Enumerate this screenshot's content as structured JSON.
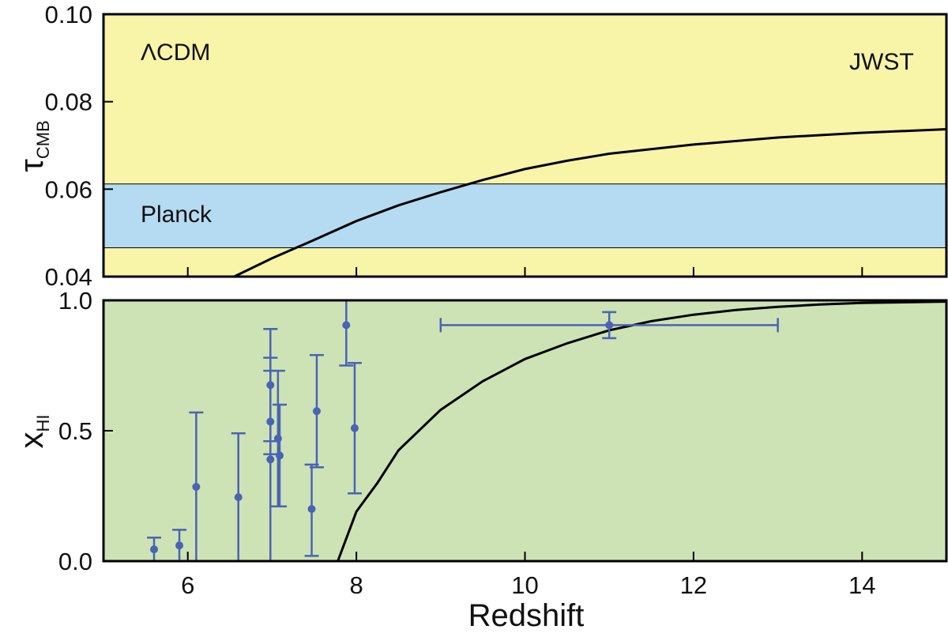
{
  "chart_data": [
    {
      "type": "line",
      "panel": "top",
      "ylabel_main": "τ",
      "ylabel_sub": "CMB",
      "xlim": [
        5,
        15
      ],
      "ylim": [
        0.04,
        0.1
      ],
      "yticks": [
        0.04,
        0.06,
        0.08,
        0.1
      ],
      "ytick_labels": [
        "0.04",
        "0.06",
        "0.08",
        "0.10"
      ],
      "background_color": "#f8f4a8",
      "band": {
        "label": "Planck",
        "range": [
          0.0466,
          0.0612
        ],
        "color": "#b5dbf2"
      },
      "annotations": [
        "ΛCDM",
        "JWST"
      ],
      "series": [
        {
          "x": [
            6.55,
            7.0,
            7.5,
            8.0,
            8.5,
            9.0,
            9.5,
            10.0,
            10.5,
            11.0,
            12.0,
            13.0,
            14.0,
            15.0
          ],
          "y": [
            0.04,
            0.0442,
            0.0484,
            0.0527,
            0.0563,
            0.0593,
            0.0621,
            0.0646,
            0.0665,
            0.0681,
            0.0702,
            0.0718,
            0.0729,
            0.0737
          ],
          "color": "#000000"
        }
      ]
    },
    {
      "type": "scatter",
      "panel": "bottom",
      "ylabel_main": "x",
      "ylabel_sub": "HI",
      "xlabel": "Redshift",
      "xlim": [
        5,
        15
      ],
      "ylim": [
        0,
        1
      ],
      "xticks": [
        6,
        8,
        10,
        12,
        14
      ],
      "xtick_labels": [
        "6",
        "8",
        "10",
        "12",
        "14"
      ],
      "yticks": [
        0.0,
        0.5,
        1.0
      ],
      "ytick_labels": [
        "0.0",
        "0.5",
        "1.0"
      ],
      "background_color": "#cde3b5",
      "point_color": "#4a63b5",
      "points": [
        {
          "x": 5.6,
          "y": 0.045,
          "ylo": 0.0,
          "yhi": 0.09
        },
        {
          "x": 5.9,
          "y": 0.06,
          "ylo": 0.0,
          "yhi": 0.12
        },
        {
          "x": 6.1,
          "y": 0.285,
          "ylo": 0.0,
          "yhi": 0.57
        },
        {
          "x": 6.6,
          "y": 0.245,
          "ylo": 0.0,
          "yhi": 0.49
        },
        {
          "x": 6.98,
          "y": 0.675,
          "ylo": 0.46,
          "yhi": 0.89
        },
        {
          "x": 6.98,
          "y": 0.535,
          "ylo": 0.41,
          "yhi": 0.78
        },
        {
          "x": 6.98,
          "y": 0.39,
          "ylo": 0.0,
          "yhi": 0.73
        },
        {
          "x": 7.07,
          "y": 0.47,
          "ylo": 0.21,
          "yhi": 0.73
        },
        {
          "x": 7.09,
          "y": 0.405,
          "ylo": 0.21,
          "yhi": 0.6
        },
        {
          "x": 7.47,
          "y": 0.2,
          "ylo": 0.02,
          "yhi": 0.37
        },
        {
          "x": 7.53,
          "y": 0.575,
          "ylo": 0.36,
          "yhi": 0.79
        },
        {
          "x": 7.88,
          "y": 0.905,
          "ylo": 0.75,
          "yhi": 1.0
        },
        {
          "x": 7.98,
          "y": 0.51,
          "ylo": 0.26,
          "yhi": 0.76
        },
        {
          "x": 11.0,
          "y": 0.905,
          "ylo": 0.855,
          "yhi": 0.955,
          "xlo": 9.0,
          "xhi": 13.0
        }
      ],
      "series": [
        {
          "x": [
            7.78,
            8.0,
            8.25,
            8.5,
            9.0,
            9.5,
            10.0,
            10.5,
            11.0,
            11.5,
            12.0,
            12.5,
            13.0,
            13.5,
            14.0,
            15.0
          ],
          "y": [
            0.0,
            0.19,
            0.3,
            0.425,
            0.58,
            0.69,
            0.775,
            0.835,
            0.885,
            0.92,
            0.945,
            0.963,
            0.975,
            0.984,
            0.99,
            0.995
          ],
          "color": "#000000"
        }
      ]
    }
  ]
}
